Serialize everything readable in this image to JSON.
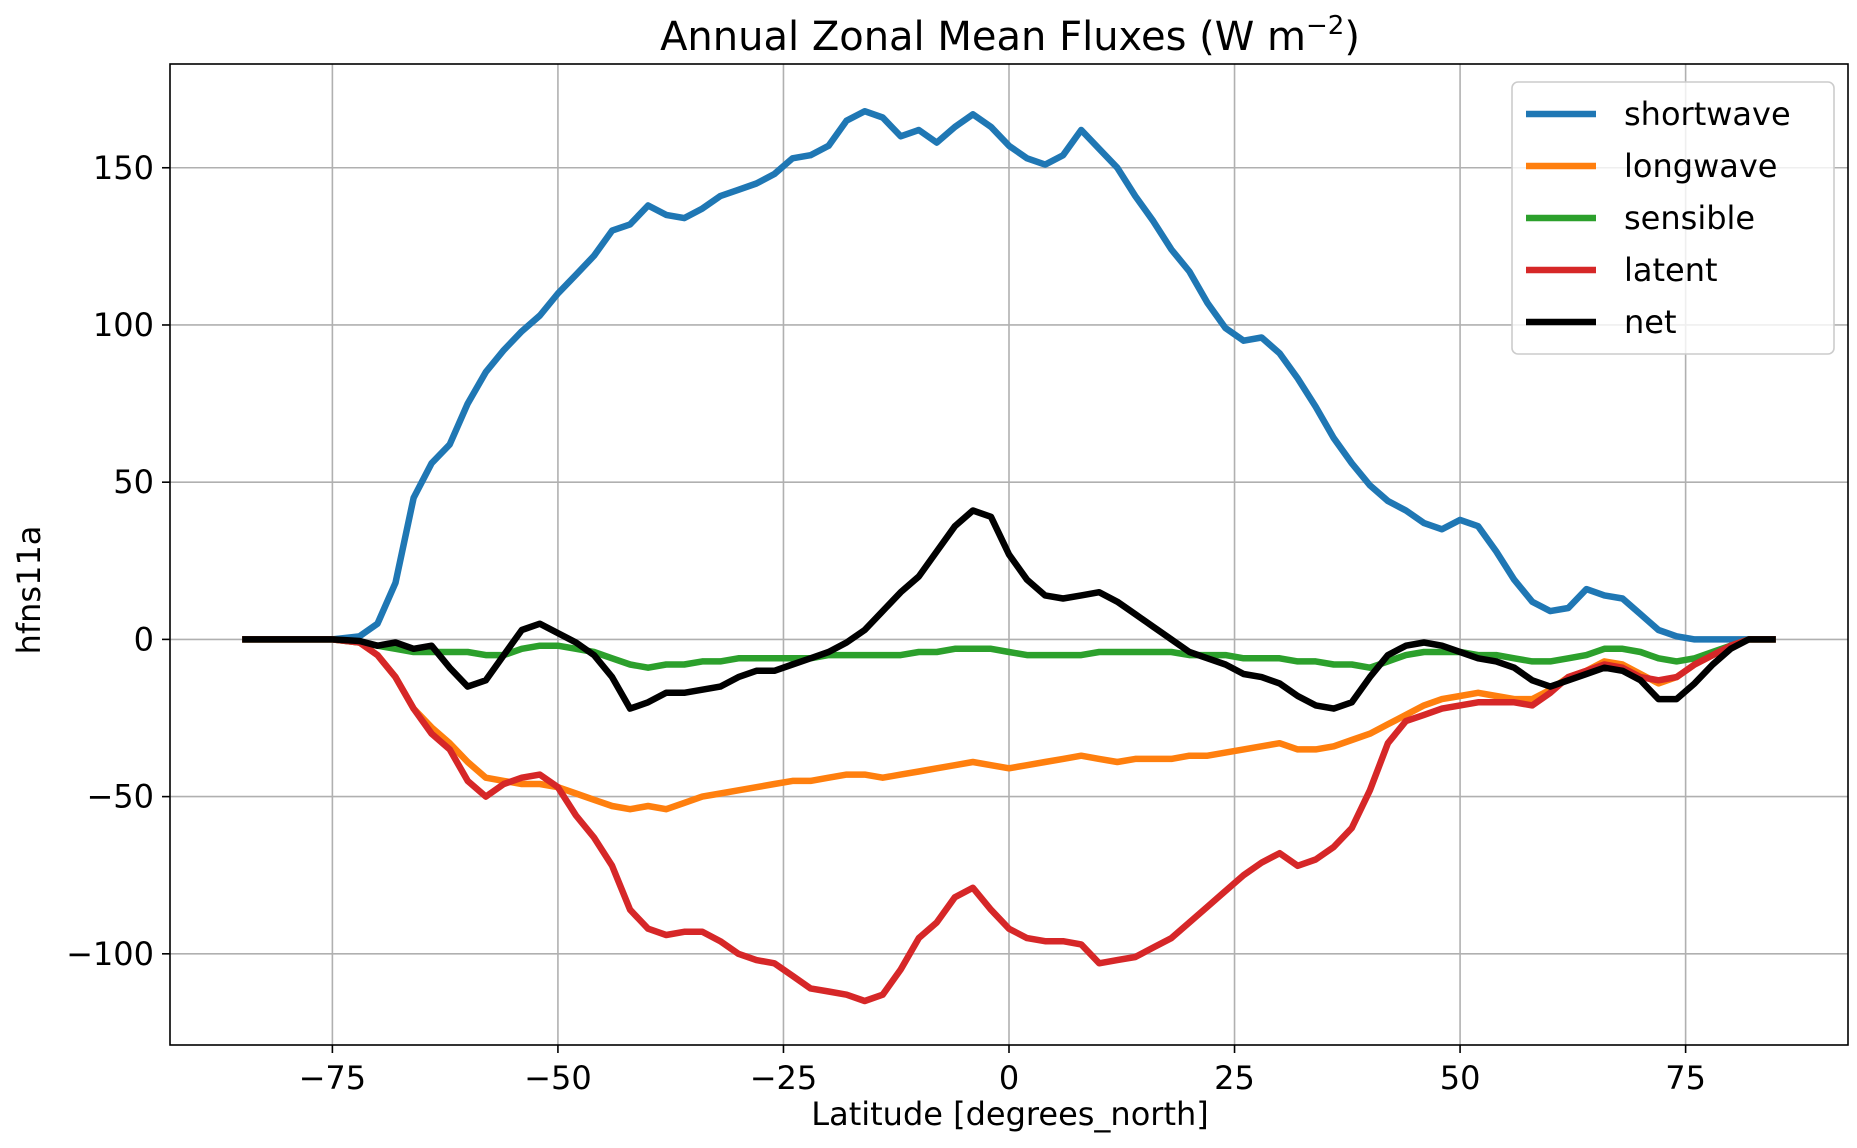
{
  "chart_data": {
    "type": "line",
    "title": "Annual Zonal Mean Fluxes (W m",
    "title_superscript": "−2",
    "title_end": ")",
    "xlabel": "Latitude [degrees_north]",
    "ylabel": "hfns11a",
    "xlim": [
      -93,
      93
    ],
    "ylim": [
      -129,
      183
    ],
    "xticks": [
      -75,
      -50,
      -25,
      0,
      25,
      50,
      75
    ],
    "xtick_labels": [
      "−75",
      "−50",
      "−25",
      "0",
      "25",
      "50",
      "75"
    ],
    "yticks": [
      -100,
      -50,
      0,
      50,
      100,
      150
    ],
    "ytick_labels": [
      "−100",
      "−50",
      "0",
      "50",
      "100",
      "150"
    ],
    "grid": true,
    "legend_position": "top-right",
    "series": [
      {
        "name": "shortwave",
        "color": "#1f77b4",
        "x": [
          -85,
          -80,
          -75,
          -72,
          -70,
          -68,
          -66,
          -64,
          -62,
          -60,
          -58,
          -56,
          -54,
          -52,
          -50,
          -48,
          -46,
          -44,
          -42,
          -40,
          -38,
          -36,
          -34,
          -32,
          -30,
          -28,
          -26,
          -24,
          -22,
          -20,
          -18,
          -16,
          -14,
          -12,
          -10,
          -8,
          -6,
          -4,
          -2,
          0,
          2,
          4,
          6,
          8,
          10,
          12,
          14,
          16,
          18,
          20,
          22,
          24,
          26,
          28,
          30,
          32,
          34,
          36,
          38,
          40,
          42,
          44,
          46,
          48,
          50,
          52,
          54,
          56,
          58,
          60,
          62,
          64,
          66,
          68,
          70,
          72,
          74,
          76,
          78,
          80,
          82,
          85
        ],
        "y": [
          0,
          0,
          0,
          1,
          5,
          18,
          45,
          56,
          62,
          75,
          85,
          92,
          98,
          103,
          110,
          116,
          122,
          130,
          132,
          138,
          135,
          134,
          137,
          141,
          143,
          145,
          148,
          153,
          154,
          157,
          165,
          168,
          166,
          160,
          162,
          158,
          163,
          167,
          163,
          157,
          153,
          151,
          154,
          162,
          156,
          150,
          141,
          133,
          124,
          117,
          107,
          99,
          95,
          96,
          91,
          83,
          74,
          64,
          56,
          49,
          44,
          41,
          37,
          35,
          38,
          36,
          28,
          19,
          12,
          9,
          10,
          16,
          14,
          13,
          8,
          3,
          1,
          0,
          0,
          0,
          0,
          0
        ]
      },
      {
        "name": "longwave",
        "color": "#ff7f0e",
        "x": [
          -85,
          -80,
          -75,
          -72,
          -70,
          -68,
          -66,
          -64,
          -62,
          -60,
          -58,
          -56,
          -54,
          -52,
          -50,
          -48,
          -46,
          -44,
          -42,
          -40,
          -38,
          -36,
          -34,
          -32,
          -30,
          -28,
          -26,
          -24,
          -22,
          -20,
          -18,
          -16,
          -14,
          -12,
          -10,
          -8,
          -6,
          -4,
          -2,
          0,
          2,
          4,
          6,
          8,
          10,
          12,
          14,
          16,
          18,
          20,
          22,
          24,
          26,
          28,
          30,
          32,
          34,
          36,
          38,
          40,
          42,
          44,
          46,
          48,
          50,
          52,
          54,
          56,
          58,
          60,
          62,
          64,
          66,
          68,
          70,
          72,
          74,
          76,
          78,
          80,
          82,
          85
        ],
        "y": [
          0,
          0,
          0,
          -1,
          -5,
          -12,
          -22,
          -28,
          -33,
          -39,
          -44,
          -45,
          -46,
          -46,
          -47,
          -49,
          -51,
          -53,
          -54,
          -53,
          -54,
          -52,
          -50,
          -49,
          -48,
          -47,
          -46,
          -45,
          -45,
          -44,
          -43,
          -43,
          -44,
          -43,
          -42,
          -41,
          -40,
          -39,
          -40,
          -41,
          -40,
          -39,
          -38,
          -37,
          -38,
          -39,
          -38,
          -38,
          -38,
          -37,
          -37,
          -36,
          -35,
          -34,
          -33,
          -35,
          -35,
          -34,
          -32,
          -30,
          -27,
          -24,
          -21,
          -19,
          -18,
          -17,
          -18,
          -19,
          -19,
          -16,
          -12,
          -10,
          -7,
          -8,
          -11,
          -14,
          -12,
          -8,
          -5,
          -2,
          0,
          0
        ]
      },
      {
        "name": "sensible",
        "color": "#2ca02c",
        "x": [
          -85,
          -80,
          -75,
          -72,
          -70,
          -68,
          -66,
          -64,
          -62,
          -60,
          -58,
          -56,
          -54,
          -52,
          -50,
          -48,
          -46,
          -44,
          -42,
          -40,
          -38,
          -36,
          -34,
          -32,
          -30,
          -28,
          -26,
          -24,
          -22,
          -20,
          -18,
          -16,
          -14,
          -12,
          -10,
          -8,
          -6,
          -4,
          -2,
          0,
          2,
          4,
          6,
          8,
          10,
          12,
          14,
          16,
          18,
          20,
          22,
          24,
          26,
          28,
          30,
          32,
          34,
          36,
          38,
          40,
          42,
          44,
          46,
          48,
          50,
          52,
          54,
          56,
          58,
          60,
          62,
          64,
          66,
          68,
          70,
          72,
          74,
          76,
          78,
          80,
          82,
          85
        ],
        "y": [
          0,
          0,
          0,
          -1,
          -2,
          -3,
          -4,
          -4,
          -4,
          -4,
          -5,
          -5,
          -3,
          -2,
          -2,
          -3,
          -4,
          -6,
          -8,
          -9,
          -8,
          -8,
          -7,
          -7,
          -6,
          -6,
          -6,
          -6,
          -6,
          -5,
          -5,
          -5,
          -5,
          -5,
          -4,
          -4,
          -3,
          -3,
          -3,
          -4,
          -5,
          -5,
          -5,
          -5,
          -4,
          -4,
          -4,
          -4,
          -4,
          -5,
          -5,
          -5,
          -6,
          -6,
          -6,
          -7,
          -7,
          -8,
          -8,
          -9,
          -7,
          -5,
          -4,
          -4,
          -4,
          -5,
          -5,
          -6,
          -7,
          -7,
          -6,
          -5,
          -3,
          -3,
          -4,
          -6,
          -7,
          -6,
          -4,
          -2,
          0,
          0
        ]
      },
      {
        "name": "latent",
        "color": "#d62728",
        "x": [
          -85,
          -80,
          -75,
          -72,
          -70,
          -68,
          -66,
          -64,
          -62,
          -60,
          -58,
          -56,
          -54,
          -52,
          -50,
          -48,
          -46,
          -44,
          -42,
          -40,
          -38,
          -36,
          -34,
          -32,
          -30,
          -28,
          -26,
          -24,
          -22,
          -20,
          -18,
          -16,
          -14,
          -12,
          -10,
          -8,
          -6,
          -4,
          -2,
          0,
          2,
          4,
          6,
          8,
          10,
          12,
          14,
          16,
          18,
          20,
          22,
          24,
          26,
          28,
          30,
          32,
          34,
          36,
          38,
          40,
          42,
          44,
          46,
          48,
          50,
          52,
          54,
          56,
          58,
          60,
          62,
          64,
          66,
          68,
          70,
          72,
          74,
          76,
          78,
          80,
          82,
          85
        ],
        "y": [
          0,
          0,
          0,
          -1,
          -5,
          -12,
          -22,
          -30,
          -35,
          -45,
          -50,
          -46,
          -44,
          -43,
          -47,
          -56,
          -63,
          -72,
          -86,
          -92,
          -94,
          -93,
          -93,
          -96,
          -100,
          -102,
          -103,
          -107,
          -111,
          -112,
          -113,
          -115,
          -113,
          -105,
          -95,
          -90,
          -82,
          -79,
          -86,
          -92,
          -95,
          -96,
          -96,
          -97,
          -103,
          -102,
          -101,
          -98,
          -95,
          -90,
          -85,
          -80,
          -75,
          -71,
          -68,
          -72,
          -70,
          -66,
          -60,
          -48,
          -33,
          -26,
          -24,
          -22,
          -21,
          -20,
          -20,
          -20,
          -21,
          -17,
          -12,
          -10,
          -8,
          -9,
          -12,
          -13,
          -12,
          -8,
          -5,
          -2,
          0,
          0
        ]
      },
      {
        "name": "net",
        "color": "#000000",
        "x": [
          -85,
          -80,
          -75,
          -72,
          -70,
          -68,
          -66,
          -64,
          -62,
          -60,
          -58,
          -56,
          -54,
          -52,
          -50,
          -48,
          -46,
          -44,
          -42,
          -40,
          -38,
          -36,
          -34,
          -32,
          -30,
          -28,
          -26,
          -24,
          -22,
          -20,
          -18,
          -16,
          -14,
          -12,
          -10,
          -8,
          -6,
          -4,
          -2,
          0,
          2,
          4,
          6,
          8,
          10,
          12,
          14,
          16,
          18,
          20,
          22,
          24,
          26,
          28,
          30,
          32,
          34,
          36,
          38,
          40,
          42,
          44,
          46,
          48,
          50,
          52,
          54,
          56,
          58,
          60,
          62,
          64,
          66,
          68,
          70,
          72,
          74,
          76,
          78,
          80,
          82,
          85
        ],
        "y": [
          0,
          0,
          0,
          -0.5,
          -2,
          -1,
          -3,
          -2,
          -9,
          -15,
          -13,
          -5,
          3,
          5,
          2,
          -1,
          -5,
          -12,
          -22,
          -20,
          -17,
          -17,
          -16,
          -15,
          -12,
          -10,
          -10,
          -8,
          -6,
          -4,
          -1,
          3,
          9,
          15,
          20,
          28,
          36,
          41,
          39,
          27,
          19,
          14,
          13,
          14,
          15,
          12,
          8,
          4,
          0,
          -4,
          -6,
          -8,
          -11,
          -12,
          -14,
          -18,
          -21,
          -22,
          -20,
          -12,
          -5,
          -2,
          -1,
          -2,
          -4,
          -6,
          -7,
          -9,
          -13,
          -15,
          -13,
          -11,
          -9,
          -10,
          -13,
          -19,
          -19,
          -14,
          -8,
          -3,
          0,
          0
        ]
      }
    ]
  }
}
